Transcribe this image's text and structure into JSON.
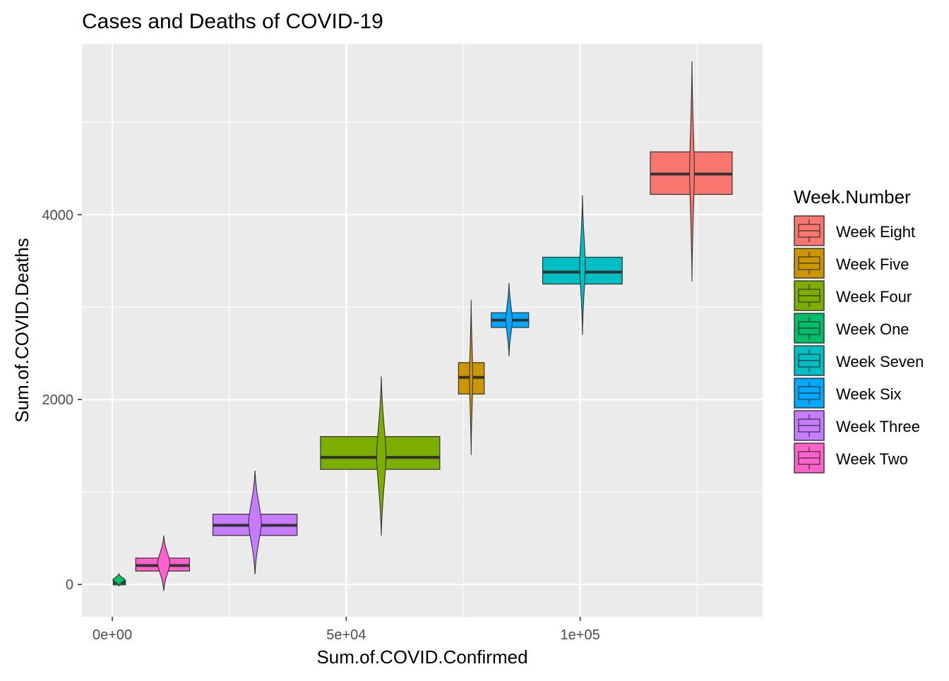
{
  "chart_data": {
    "type": "boxplot",
    "title": "Cases and Deaths of COVID-19",
    "xlabel": "Sum.of.COVID.Confirmed",
    "ylabel": "Sum.of.COVID.Deaths",
    "xlim": [
      -6500,
      139000
    ],
    "ylim": [
      -350,
      5850
    ],
    "x_ticks": [
      {
        "value": 0,
        "label": "0e+00"
      },
      {
        "value": 50000,
        "label": "5e+04"
      },
      {
        "value": 100000,
        "label": "1e+05"
      }
    ],
    "y_ticks": [
      {
        "value": 0,
        "label": "0"
      },
      {
        "value": 2000,
        "label": "2000"
      },
      {
        "value": 4000,
        "label": "4000"
      }
    ],
    "x_minor": [
      25000,
      75000,
      125000
    ],
    "y_minor": [
      1000,
      3000,
      5000
    ],
    "grid": true,
    "legend": {
      "title": "Week.Number",
      "position": "right",
      "entries": [
        {
          "label": "Week Eight",
          "color": "#F8766D"
        },
        {
          "label": "Week Five",
          "color": "#CD9600"
        },
        {
          "label": "Week Four",
          "color": "#7CAE00"
        },
        {
          "label": "Week One",
          "color": "#00BE67"
        },
        {
          "label": "Week Seven",
          "color": "#00BFC4"
        },
        {
          "label": "Week Six",
          "color": "#00A9FF"
        },
        {
          "label": "Week Three",
          "color": "#C77CFF"
        },
        {
          "label": "Week Two",
          "color": "#FF61CC"
        }
      ]
    },
    "series": [
      {
        "name": "Week One",
        "color": "#00BE67",
        "box": {
          "x_min": 200,
          "x_max": 2800,
          "q1": -5,
          "median": 20,
          "q3": 45
        },
        "violin": {
          "x": 1400,
          "half_width": 1300,
          "y_min": -15,
          "y_max": 115
        }
      },
      {
        "name": "Week Two",
        "color": "#FF61CC",
        "box": {
          "x_min": 5000,
          "x_max": 16500,
          "q1": 145,
          "median": 205,
          "q3": 285
        },
        "violin": {
          "x": 11000,
          "half_width": 1300,
          "y_min": -70,
          "y_max": 530
        }
      },
      {
        "name": "Week Three",
        "color": "#C77CFF",
        "box": {
          "x_min": 21500,
          "x_max": 39500,
          "q1": 530,
          "median": 640,
          "q3": 760
        },
        "violin": {
          "x": 30500,
          "half_width": 1350,
          "y_min": 110,
          "y_max": 1230
        }
      },
      {
        "name": "Week Four",
        "color": "#7CAE00",
        "box": {
          "x_min": 44500,
          "x_max": 70000,
          "q1": 1245,
          "median": 1375,
          "q3": 1600
        },
        "violin": {
          "x": 57500,
          "half_width": 1000,
          "y_min": 530,
          "y_max": 2250
        }
      },
      {
        "name": "Week Five",
        "color": "#CD9600",
        "box": {
          "x_min": 74000,
          "x_max": 79500,
          "q1": 2060,
          "median": 2240,
          "q3": 2400
        },
        "violin": {
          "x": 76700,
          "half_width": 350,
          "y_min": 1400,
          "y_max": 3080
        }
      },
      {
        "name": "Week Six",
        "color": "#00A9FF",
        "box": {
          "x_min": 81000,
          "x_max": 89000,
          "q1": 2780,
          "median": 2860,
          "q3": 2940
        },
        "violin": {
          "x": 84800,
          "half_width": 700,
          "y_min": 2470,
          "y_max": 3260
        }
      },
      {
        "name": "Week Seven",
        "color": "#00BFC4",
        "box": {
          "x_min": 92000,
          "x_max": 109000,
          "q1": 3250,
          "median": 3380,
          "q3": 3540
        },
        "violin": {
          "x": 100500,
          "half_width": 600,
          "y_min": 2700,
          "y_max": 4210
        }
      },
      {
        "name": "Week Eight",
        "color": "#F8766D",
        "box": {
          "x_min": 115000,
          "x_max": 132500,
          "q1": 4220,
          "median": 4440,
          "q3": 4680
        },
        "violin": {
          "x": 123900,
          "half_width": 500,
          "y_min": 3280,
          "y_max": 5660
        }
      }
    ]
  }
}
